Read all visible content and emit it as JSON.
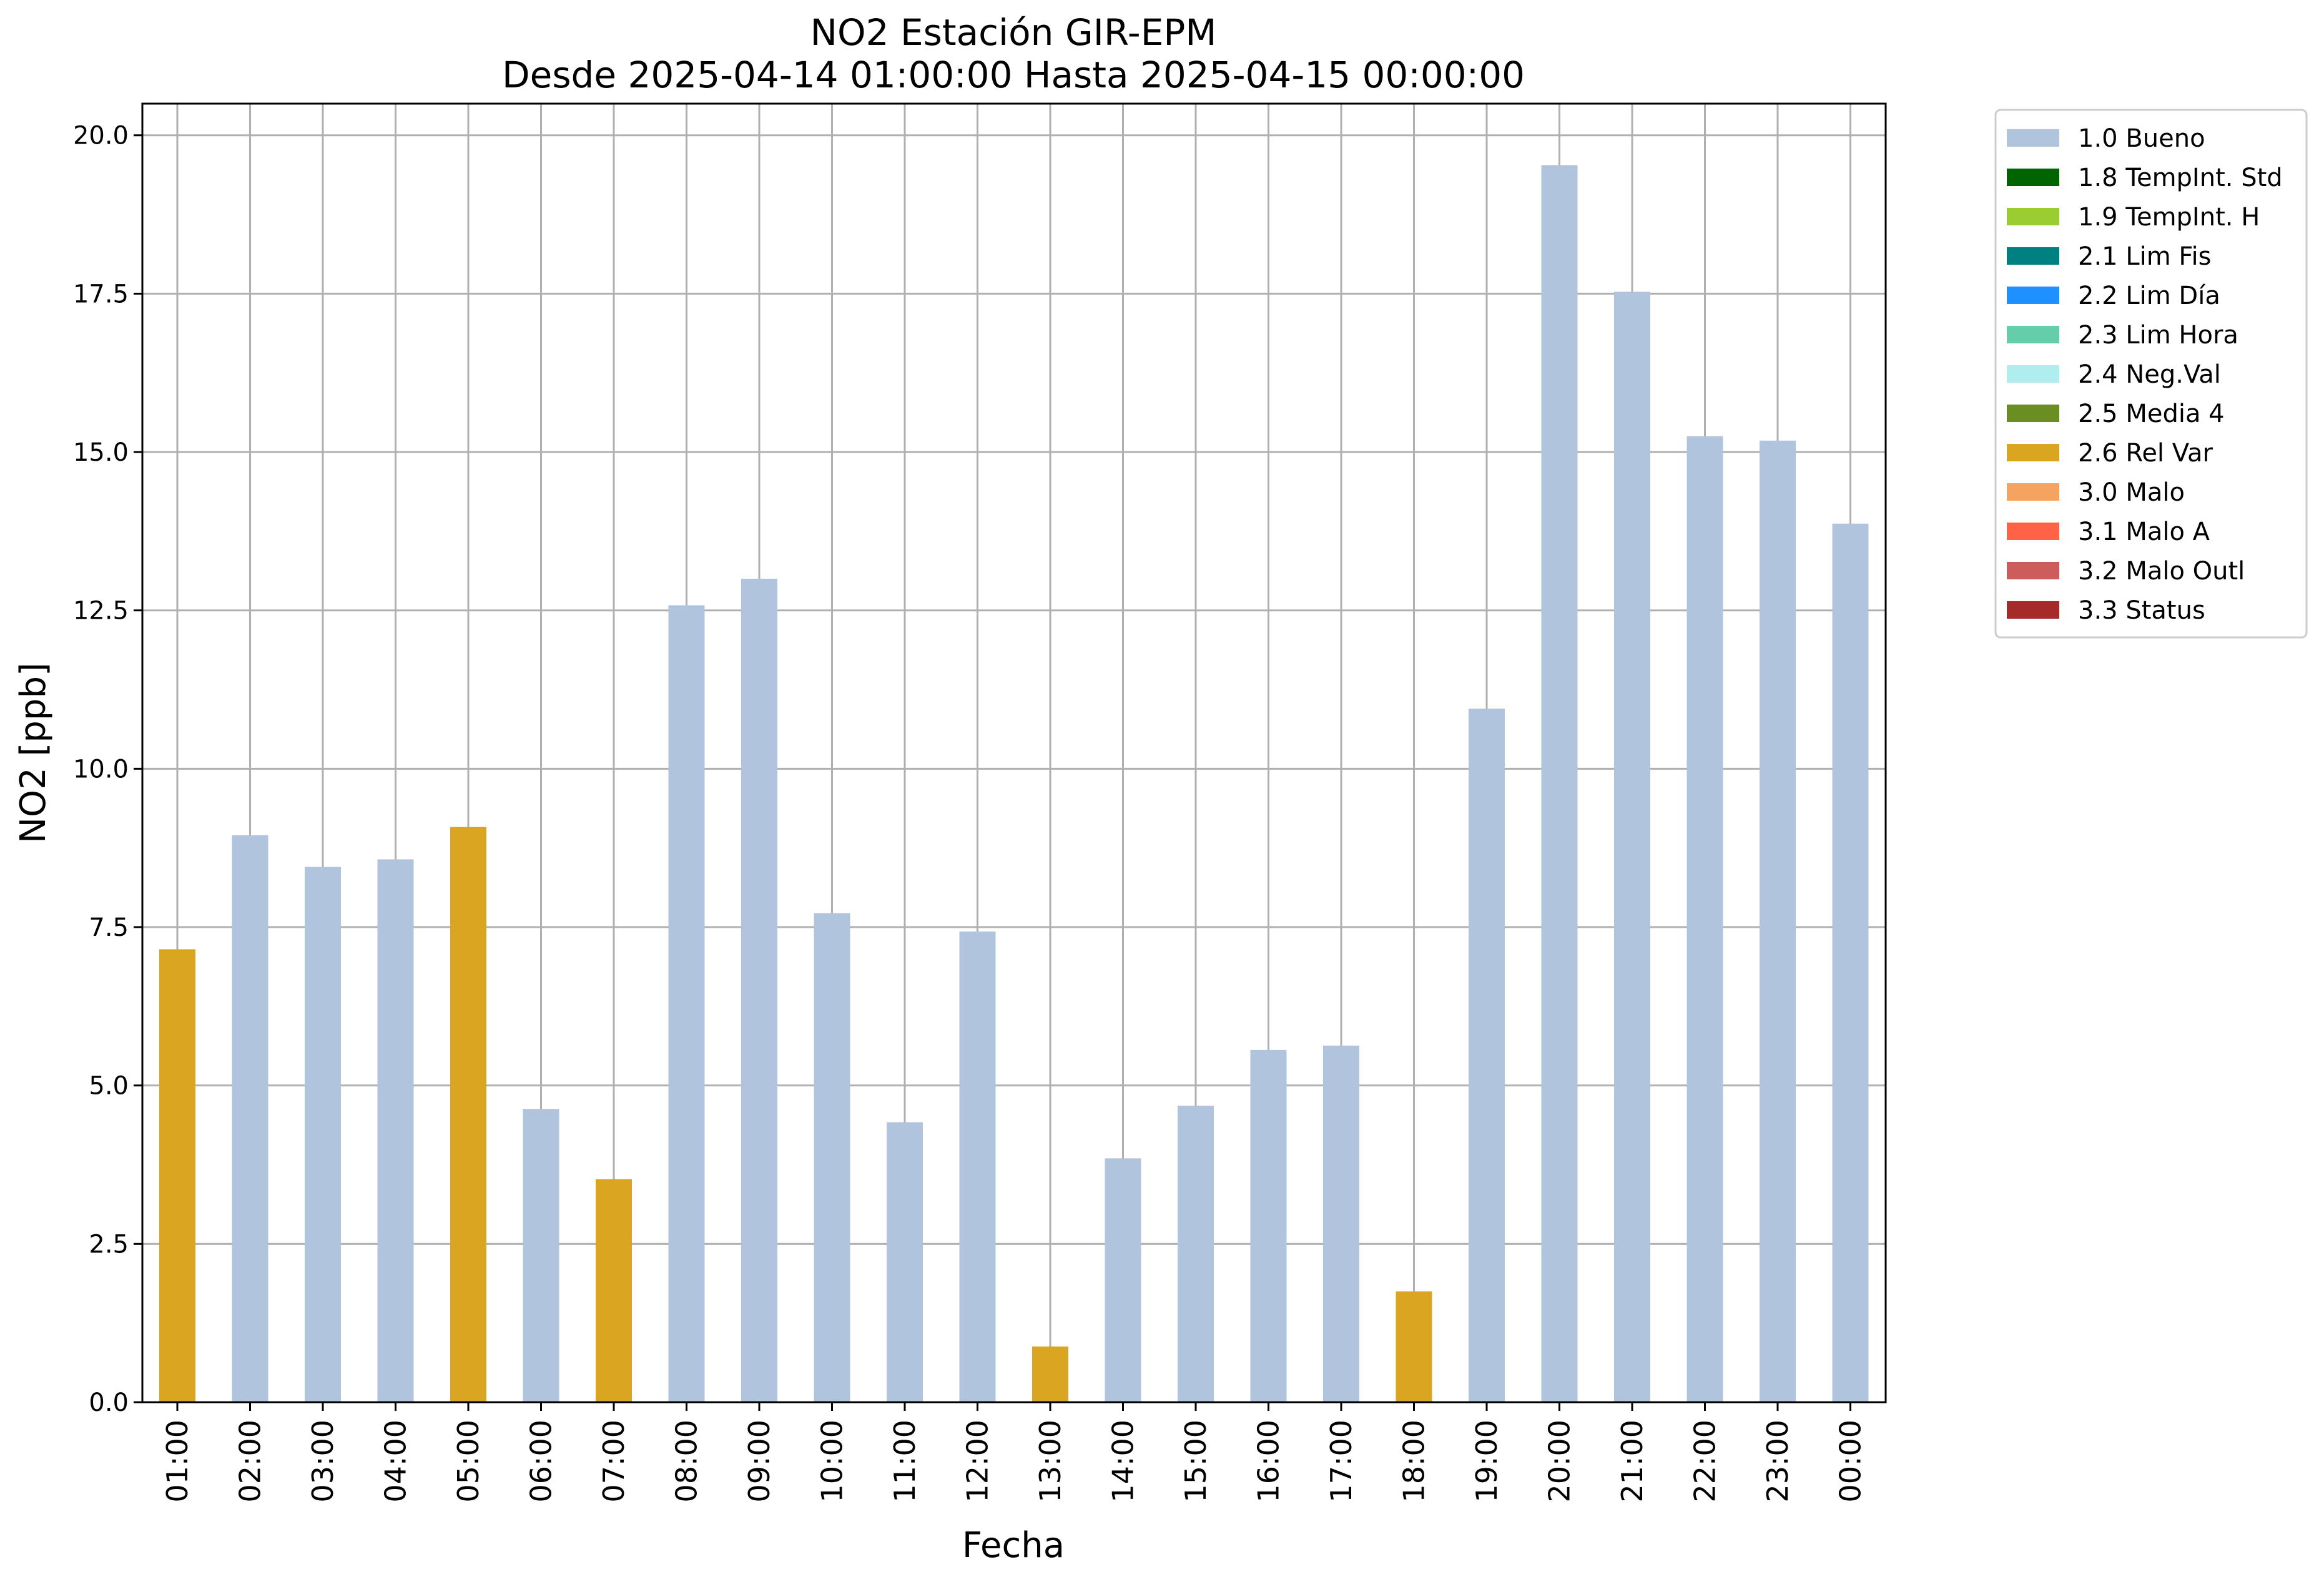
{
  "chart_data": {
    "type": "bar",
    "title": "NO2 Estación GIR-EPM",
    "subtitle": "Desde 2025-04-14 01:00:00 Hasta 2025-04-15 00:00:00",
    "xlabel": "Fecha",
    "ylabel": "NO2 [ppb]",
    "ylim": [
      0,
      20.5
    ],
    "yticks": [
      "0.0",
      "2.5",
      "5.0",
      "7.5",
      "10.0",
      "12.5",
      "15.0",
      "17.5",
      "20.0"
    ],
    "grid": true,
    "legend_position": "outside-top-right",
    "categories": [
      "01:00",
      "02:00",
      "03:00",
      "04:00",
      "05:00",
      "06:00",
      "07:00",
      "08:00",
      "09:00",
      "10:00",
      "11:00",
      "12:00",
      "13:00",
      "14:00",
      "15:00",
      "16:00",
      "17:00",
      "18:00",
      "19:00",
      "20:00",
      "21:00",
      "22:00",
      "23:00",
      "00:00"
    ],
    "values": [
      7.15,
      8.95,
      8.45,
      8.57,
      9.08,
      4.63,
      3.52,
      12.58,
      13.0,
      7.72,
      4.42,
      7.43,
      0.88,
      3.85,
      4.68,
      5.56,
      5.63,
      1.75,
      10.95,
      19.53,
      17.53,
      15.25,
      15.18,
      13.87
    ],
    "flags": [
      "2.6 Rel Var",
      "1.0 Bueno",
      "1.0 Bueno",
      "1.0 Bueno",
      "2.6 Rel Var",
      "1.0 Bueno",
      "2.6 Rel Var",
      "1.0 Bueno",
      "1.0 Bueno",
      "1.0 Bueno",
      "1.0 Bueno",
      "1.0 Bueno",
      "2.6 Rel Var",
      "1.0 Bueno",
      "1.0 Bueno",
      "1.0 Bueno",
      "1.0 Bueno",
      "2.6 Rel Var",
      "1.0 Bueno",
      "1.0 Bueno",
      "1.0 Bueno",
      "1.0 Bueno",
      "1.0 Bueno",
      "1.0 Bueno"
    ],
    "legend": [
      {
        "label": "1.0 Bueno",
        "color": "#b0c4de"
      },
      {
        "label": "1.8 TempInt. Std",
        "color": "#006400"
      },
      {
        "label": "1.9 TempInt. H",
        "color": "#9acd32"
      },
      {
        "label": "2.1 Lim Fis",
        "color": "#008080"
      },
      {
        "label": "2.2 Lim Día",
        "color": "#1e90ff"
      },
      {
        "label": "2.3 Lim Hora",
        "color": "#66cdaa"
      },
      {
        "label": "2.4 Neg.Val",
        "color": "#afeeee"
      },
      {
        "label": "2.5 Media 4",
        "color": "#6b8e23"
      },
      {
        "label": "2.6 Rel Var",
        "color": "#daa520"
      },
      {
        "label": "3.0 Malo",
        "color": "#f4a460"
      },
      {
        "label": "3.1 Malo A",
        "color": "#ff6347"
      },
      {
        "label": "3.2 Malo Outl",
        "color": "#cd5c5c"
      },
      {
        "label": "3.3 Status",
        "color": "#a52a2a"
      }
    ]
  }
}
